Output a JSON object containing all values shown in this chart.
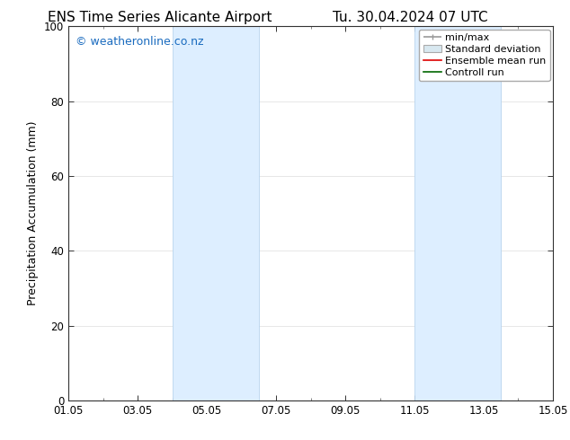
{
  "title_left": "ENS Time Series Alicante Airport",
  "title_right": "Tu. 30.04.2024 07 UTC",
  "ylabel": "Precipitation Accumulation (mm)",
  "ylim": [
    0,
    100
  ],
  "yticks": [
    0,
    20,
    40,
    60,
    80,
    100
  ],
  "xlim": [
    0,
    14
  ],
  "xtick_labels": [
    "01.05",
    "03.05",
    "05.05",
    "07.05",
    "09.05",
    "11.05",
    "13.05",
    "15.05"
  ],
  "xtick_positions": [
    0,
    2,
    4,
    6,
    8,
    10,
    12,
    14
  ],
  "shaded_regions": [
    {
      "xmin": 3.0,
      "xmax": 5.5
    },
    {
      "xmin": 10.0,
      "xmax": 12.5
    }
  ],
  "shaded_color": "#ddeeff",
  "shaded_edge_color": "#b8d4ee",
  "watermark_text": "© weatheronline.co.nz",
  "watermark_color": "#1a6bbf",
  "watermark_fontsize": 9,
  "legend_labels": [
    "min/max",
    "Standard deviation",
    "Ensemble mean run",
    "Controll run"
  ],
  "background_color": "#ffffff",
  "plot_bg_color": "#ffffff",
  "grid_color": "#dddddd",
  "title_fontsize": 11,
  "axis_fontsize": 9,
  "tick_fontsize": 8.5,
  "legend_fontsize": 8
}
